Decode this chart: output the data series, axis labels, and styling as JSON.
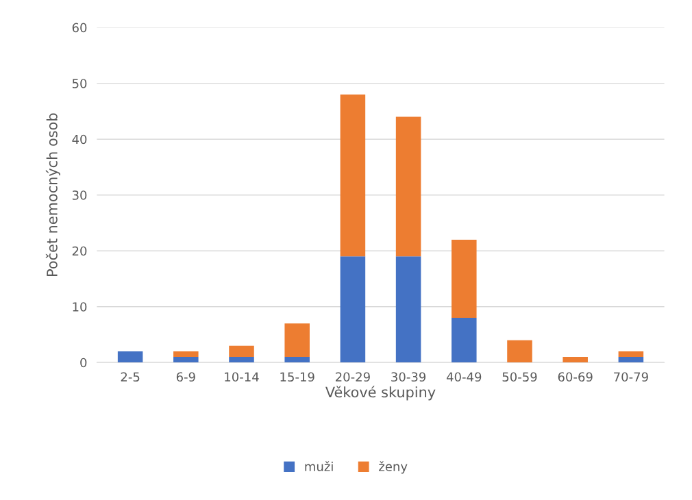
{
  "chart_data": {
    "type": "bar",
    "stacked": true,
    "xlabel": "Věkové skupiny",
    "ylabel": "Počet nemocných osob",
    "categories": [
      "2-5",
      "6-9",
      "10-14",
      "15-19",
      "20-29",
      "30-39",
      "40-49",
      "50-59",
      "60-69",
      "70-79"
    ],
    "series": [
      {
        "name": "muži",
        "color": "#4472c4",
        "values": [
          2,
          1,
          1,
          1,
          19,
          19,
          8,
          0,
          0,
          1
        ]
      },
      {
        "name": "ženy",
        "color": "#ed7d31",
        "values": [
          0,
          1,
          2,
          6,
          29,
          25,
          14,
          4,
          1,
          1
        ]
      }
    ],
    "ylim": [
      0,
      60
    ],
    "yticks": [
      0,
      10,
      20,
      30,
      40,
      50,
      60
    ],
    "grid": "y",
    "legend": "bottom"
  }
}
